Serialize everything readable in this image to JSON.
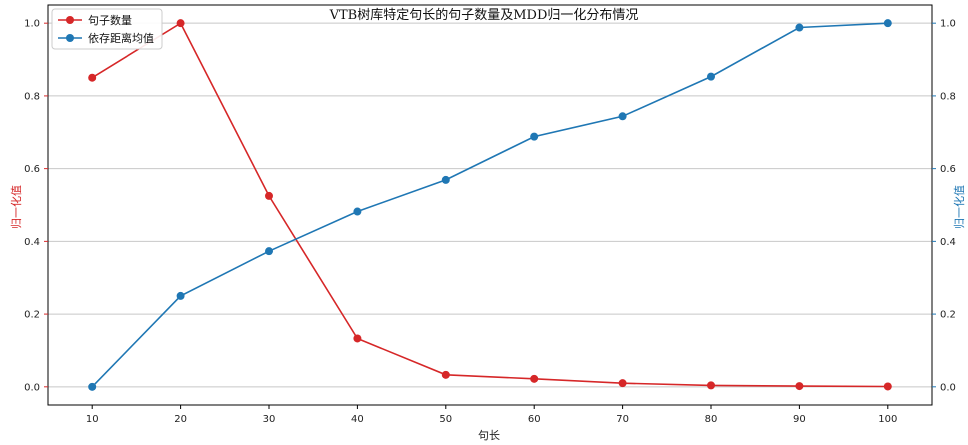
{
  "chart_data": {
    "type": "line",
    "title": "VTB树库特定句长的句子数量及MDD归一化分布情况",
    "xlabel": "句长",
    "ylabel_left": "归一化值",
    "ylabel_right": "归一化值",
    "x": [
      10,
      20,
      30,
      40,
      50,
      60,
      70,
      80,
      90,
      100
    ],
    "xticks": [
      "10",
      "20",
      "30",
      "40",
      "50",
      "60",
      "70",
      "80",
      "90",
      "100"
    ],
    "yticks": [
      "0.0",
      "0.2",
      "0.4",
      "0.6",
      "0.8",
      "1.0"
    ],
    "xlim": [
      5,
      105
    ],
    "ylim": [
      -0.05,
      1.05
    ],
    "grid": "horizontal",
    "legend_position": "top-left",
    "colors": {
      "left_axis": "#d62728",
      "right_axis": "#1f77b4"
    },
    "series": [
      {
        "name": "句子数量",
        "color": "#d62728",
        "axis": "left",
        "values": [
          0.85,
          1.0,
          0.525,
          0.133,
          0.033,
          0.022,
          0.01,
          0.004,
          0.002,
          0.001
        ]
      },
      {
        "name": "依存距离均值",
        "color": "#1f77b4",
        "axis": "right",
        "values": [
          0.0,
          0.25,
          0.373,
          0.482,
          0.569,
          0.688,
          0.744,
          0.853,
          0.988,
          1.0
        ]
      }
    ]
  }
}
